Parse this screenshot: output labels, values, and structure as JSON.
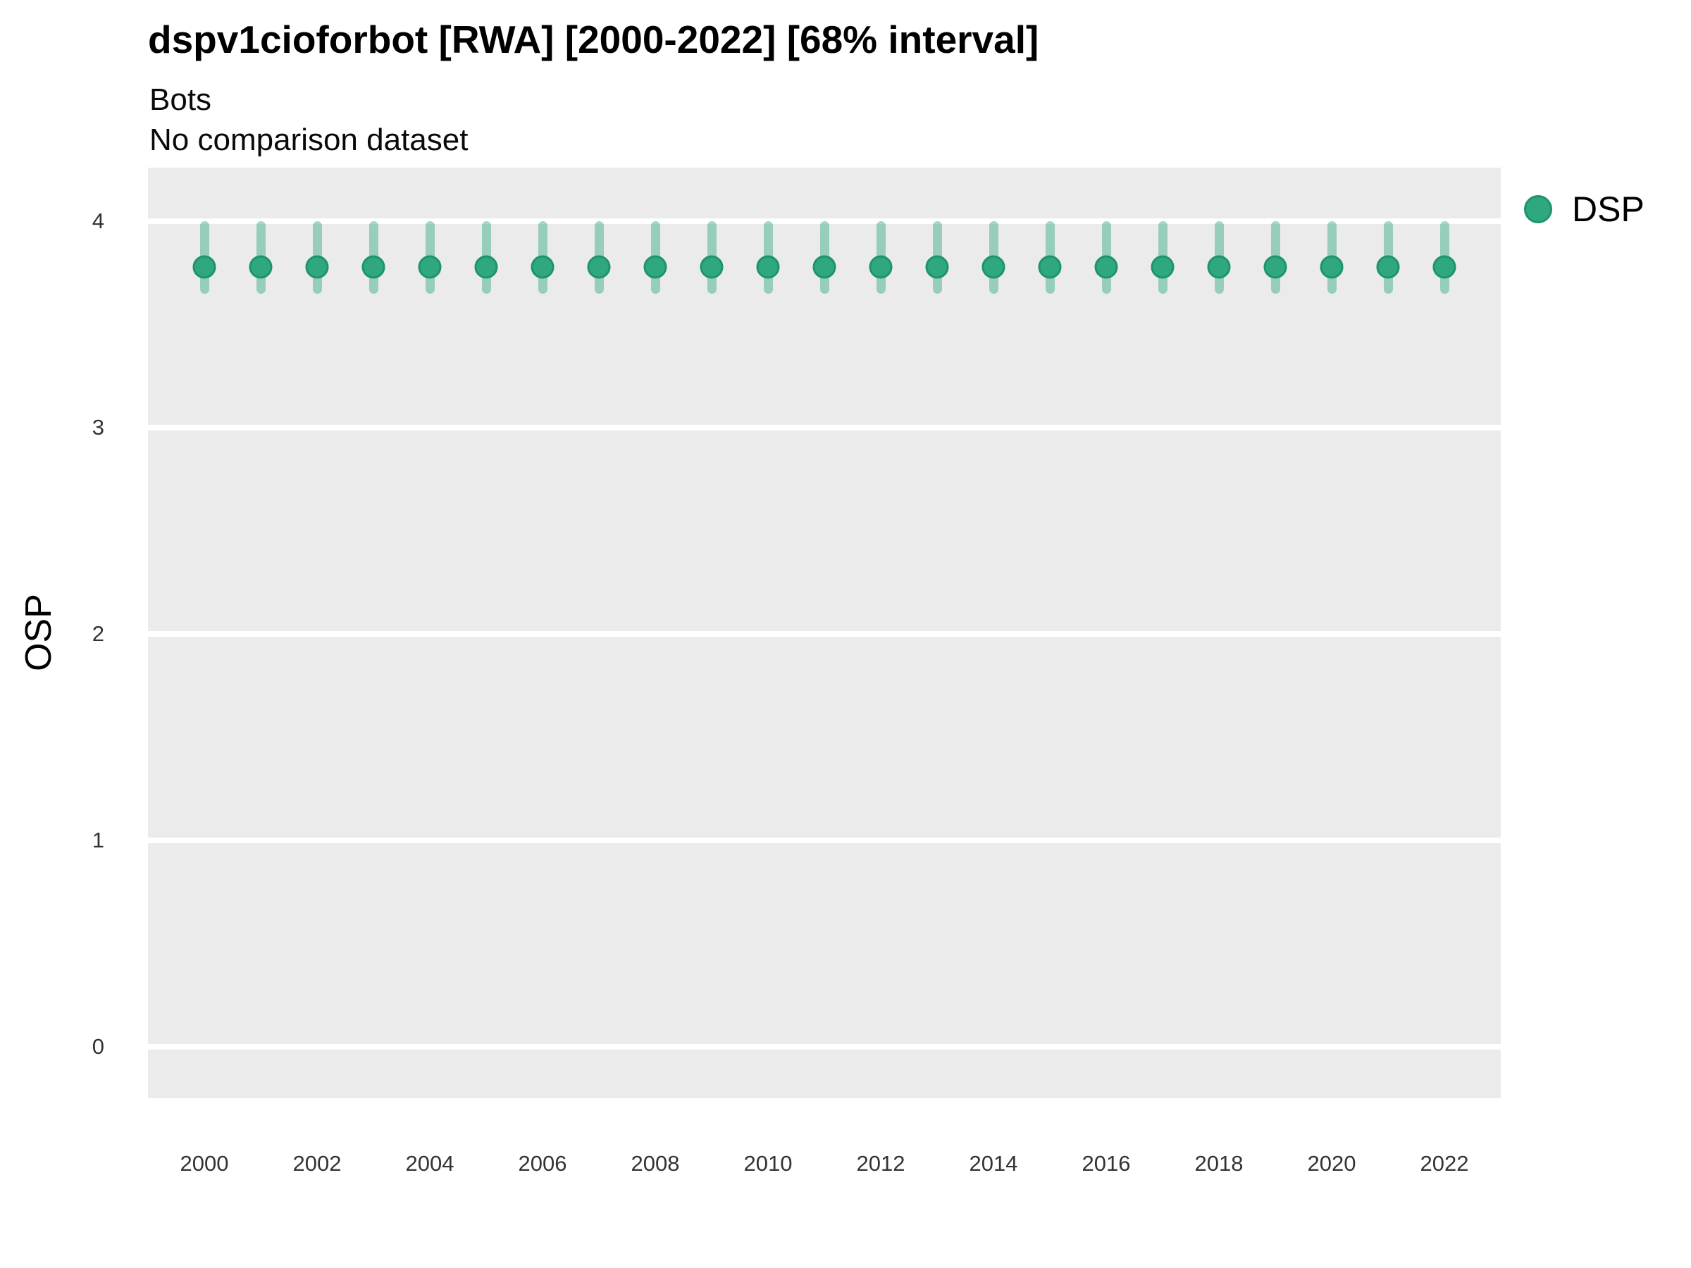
{
  "header": {
    "title": "dspv1cioforbot [RWA] [2000-2022] [68% interval]",
    "subtitle": "Bots",
    "subtitle2": "No comparison dataset"
  },
  "legend": {
    "position": "right-top",
    "items": [
      {
        "label": "DSP",
        "color": "#2FA881",
        "border_color": "#1E9469"
      }
    ]
  },
  "colors": {
    "point_fill": "#2FA881",
    "point_border": "#1E9469",
    "interval_bar": "rgba(47,168,129,0.45)",
    "panel_background": "#EBEBEB",
    "gridline": "#FFFFFF",
    "tick_text": "#333333",
    "text": "#000000"
  },
  "chart_data": {
    "type": "scatter",
    "subtype": "pointrange",
    "title": "dspv1cioforbot [RWA] [2000-2022] [68% interval]",
    "subtitle": "Bots",
    "annotation": "No comparison dataset",
    "interval_level": "68%",
    "xlabel": "",
    "ylabel": "OSP",
    "legend_position": "right-top",
    "grid": "horizontal-major-only",
    "ylim": [
      -0.25,
      4.26
    ],
    "yticks": [
      0,
      1,
      2,
      3,
      4
    ],
    "xticks": [
      2000,
      2002,
      2004,
      2006,
      2008,
      2010,
      2012,
      2014,
      2016,
      2018,
      2020,
      2022
    ],
    "x": [
      2000,
      2001,
      2002,
      2003,
      2004,
      2005,
      2006,
      2007,
      2008,
      2009,
      2010,
      2011,
      2012,
      2013,
      2014,
      2015,
      2016,
      2017,
      2018,
      2019,
      2020,
      2021,
      2022
    ],
    "series": [
      {
        "name": "DSP",
        "values": [
          3.78,
          3.78,
          3.78,
          3.78,
          3.78,
          3.78,
          3.78,
          3.78,
          3.78,
          3.78,
          3.78,
          3.78,
          3.78,
          3.78,
          3.78,
          3.78,
          3.78,
          3.78,
          3.78,
          3.78,
          3.78,
          3.78,
          3.78
        ],
        "lower": [
          3.67,
          3.67,
          3.67,
          3.67,
          3.67,
          3.67,
          3.67,
          3.67,
          3.67,
          3.67,
          3.67,
          3.67,
          3.67,
          3.67,
          3.67,
          3.67,
          3.67,
          3.67,
          3.67,
          3.67,
          3.67,
          3.67,
          3.67
        ],
        "upper": [
          3.98,
          3.98,
          3.98,
          3.98,
          3.98,
          3.98,
          3.98,
          3.98,
          3.98,
          3.98,
          3.98,
          3.98,
          3.98,
          3.98,
          3.98,
          3.98,
          3.98,
          3.98,
          3.98,
          3.98,
          3.98,
          3.98,
          3.98
        ]
      }
    ]
  }
}
